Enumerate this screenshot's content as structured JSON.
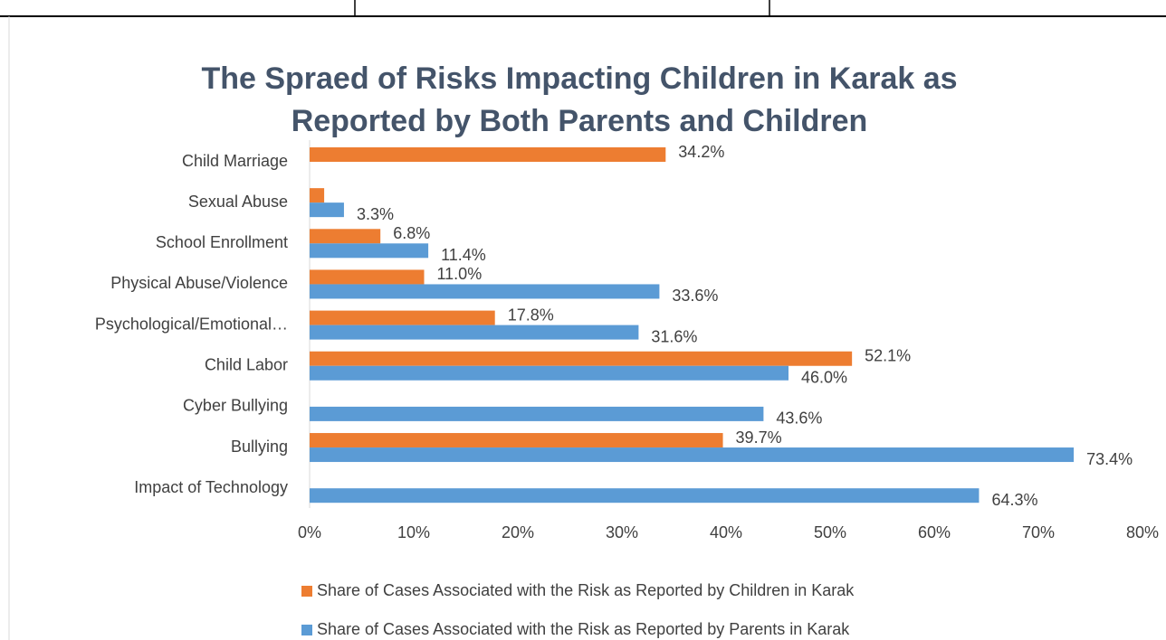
{
  "chart_data": {
    "type": "bar",
    "orientation": "horizontal",
    "title": "The Spraed of Risks Impacting Children in Karak as Reported by Both Parents and Children",
    "categories": [
      "Child Marriage",
      "Sexual Abuse",
      "School Enrollment",
      "Physical Abuse/Violence",
      "Psychological/Emotional…",
      "Child Labor",
      "Cyber Bullying",
      "Bullying",
      "Impact of Technology"
    ],
    "series": [
      {
        "name": "Share of Cases Associated with the Risk as Reported by Children in Karak",
        "color": "#ed7d31",
        "values": [
          34.2,
          1.4,
          6.8,
          11.0,
          17.8,
          52.1,
          null,
          39.7,
          null
        ],
        "value_labels": [
          "34.2%",
          null,
          "6.8%",
          "11.0%",
          "17.8%",
          "52.1%",
          null,
          "39.7%",
          null
        ]
      },
      {
        "name": "Share of Cases Associated with the Risk as Reported by Parents in Karak",
        "color": "#5b9bd5",
        "values": [
          null,
          3.3,
          11.4,
          33.6,
          31.6,
          46.0,
          43.6,
          73.4,
          64.3
        ],
        "value_labels": [
          null,
          "3.3%",
          "11.4%",
          "33.6%",
          "31.6%",
          "46.0%",
          "43.6%",
          "73.4%",
          "64.3%"
        ]
      }
    ],
    "xlim": [
      0,
      80
    ],
    "xticks": [
      {
        "value": 0,
        "label": "0%"
      },
      {
        "value": 10,
        "label": "10%"
      },
      {
        "value": 20,
        "label": "20%"
      },
      {
        "value": 30,
        "label": "30%"
      },
      {
        "value": 40,
        "label": "40%"
      },
      {
        "value": 50,
        "label": "50%"
      },
      {
        "value": 60,
        "label": "60%"
      },
      {
        "value": 70,
        "label": "70%"
      },
      {
        "value": 80,
        "label": "80%"
      }
    ],
    "grid": false,
    "legend": "bottom"
  }
}
